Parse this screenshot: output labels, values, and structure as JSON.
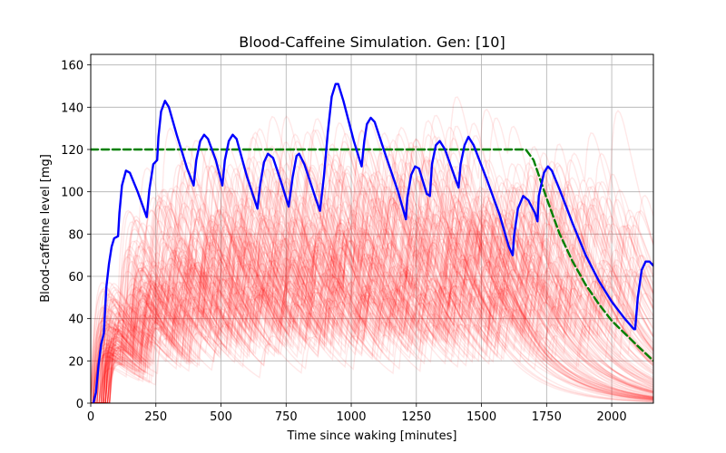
{
  "chart_data": {
    "type": "line",
    "title": "Blood-Caffeine Simulation. Gen: [10]",
    "xlabel": "Time since waking [minutes]",
    "ylabel": "Blood-caffeine level [mg]",
    "xlim": [
      0,
      2160
    ],
    "ylim": [
      0,
      165
    ],
    "x_ticks": [
      0,
      250,
      500,
      750,
      1000,
      1250,
      1500,
      1750,
      2000
    ],
    "y_ticks": [
      0,
      20,
      40,
      60,
      80,
      100,
      120,
      140,
      160
    ],
    "grid": true,
    "series": [
      {
        "role": "target",
        "color": "#008000",
        "style": "dashed",
        "points": [
          [
            0,
            120
          ],
          [
            1670,
            120
          ],
          [
            1700,
            115
          ],
          [
            1750,
            97
          ],
          [
            1800,
            80
          ],
          [
            1850,
            67
          ],
          [
            1900,
            56
          ],
          [
            1950,
            47
          ],
          [
            2000,
            39
          ],
          [
            2050,
            33
          ],
          [
            2100,
            27
          ],
          [
            2160,
            20
          ]
        ]
      },
      {
        "role": "best",
        "color": "#0000ff",
        "style": "solid",
        "points": [
          [
            10,
            0
          ],
          [
            20,
            5
          ],
          [
            30,
            18
          ],
          [
            40,
            28
          ],
          [
            50,
            33
          ],
          [
            60,
            55
          ],
          [
            70,
            66
          ],
          [
            80,
            74
          ],
          [
            90,
            78
          ],
          [
            105,
            79
          ],
          [
            110,
            90
          ],
          [
            120,
            103
          ],
          [
            135,
            110
          ],
          [
            150,
            109
          ],
          [
            180,
            100
          ],
          [
            215,
            88
          ],
          [
            225,
            101
          ],
          [
            240,
            113
          ],
          [
            255,
            115
          ],
          [
            260,
            126
          ],
          [
            270,
            138
          ],
          [
            285,
            143
          ],
          [
            300,
            140
          ],
          [
            330,
            127
          ],
          [
            370,
            111
          ],
          [
            395,
            103
          ],
          [
            405,
            115
          ],
          [
            420,
            124
          ],
          [
            435,
            127
          ],
          [
            450,
            125
          ],
          [
            480,
            115
          ],
          [
            505,
            103
          ],
          [
            515,
            115
          ],
          [
            530,
            124
          ],
          [
            545,
            127
          ],
          [
            560,
            125
          ],
          [
            600,
            107
          ],
          [
            640,
            92
          ],
          [
            650,
            103
          ],
          [
            665,
            114
          ],
          [
            680,
            118
          ],
          [
            700,
            116
          ],
          [
            730,
            105
          ],
          [
            760,
            93
          ],
          [
            775,
            107
          ],
          [
            790,
            117
          ],
          [
            800,
            118
          ],
          [
            820,
            113
          ],
          [
            860,
            98
          ],
          [
            880,
            91
          ],
          [
            895,
            107
          ],
          [
            910,
            128
          ],
          [
            925,
            145
          ],
          [
            940,
            151
          ],
          [
            950,
            151
          ],
          [
            970,
            143
          ],
          [
            1010,
            124
          ],
          [
            1040,
            112
          ],
          [
            1050,
            124
          ],
          [
            1060,
            132
          ],
          [
            1075,
            135
          ],
          [
            1090,
            133
          ],
          [
            1130,
            118
          ],
          [
            1180,
            100
          ],
          [
            1210,
            87
          ],
          [
            1215,
            97
          ],
          [
            1230,
            108
          ],
          [
            1245,
            112
          ],
          [
            1260,
            111
          ],
          [
            1290,
            99
          ],
          [
            1302,
            98
          ],
          [
            1310,
            113
          ],
          [
            1325,
            122
          ],
          [
            1340,
            124
          ],
          [
            1360,
            120
          ],
          [
            1400,
            106
          ],
          [
            1412,
            102
          ],
          [
            1420,
            113
          ],
          [
            1435,
            122
          ],
          [
            1450,
            126
          ],
          [
            1470,
            122
          ],
          [
            1520,
            106
          ],
          [
            1570,
            89
          ],
          [
            1605,
            74
          ],
          [
            1620,
            70
          ],
          [
            1625,
            79
          ],
          [
            1640,
            92
          ],
          [
            1660,
            98
          ],
          [
            1680,
            96
          ],
          [
            1705,
            90
          ],
          [
            1715,
            86
          ],
          [
            1720,
            98
          ],
          [
            1740,
            109
          ],
          [
            1755,
            112
          ],
          [
            1770,
            110
          ],
          [
            1800,
            101
          ],
          [
            1850,
            85
          ],
          [
            1900,
            70
          ],
          [
            1950,
            58
          ],
          [
            2000,
            48
          ],
          [
            2050,
            40
          ],
          [
            2085,
            35
          ],
          [
            2090,
            35
          ],
          [
            2100,
            50
          ],
          [
            2115,
            63
          ],
          [
            2130,
            67
          ],
          [
            2145,
            67
          ],
          [
            2160,
            65
          ]
        ]
      }
    ],
    "population": {
      "color": "#ff0000",
      "count": 150,
      "description_note": "many semi-transparent red candidate curves"
    }
  }
}
